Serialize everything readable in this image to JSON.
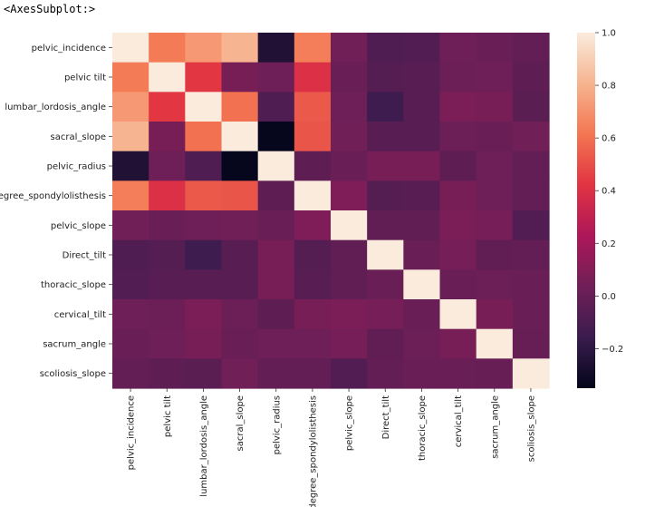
{
  "output_repr": "<AxesSubplot:>",
  "chart_data": {
    "type": "heatmap",
    "labels": [
      "pelvic_incidence",
      "pelvic tilt",
      "lumbar_lordosis_angle",
      "sacral_slope",
      "pelvic_radius",
      "degree_spondylolisthesis",
      "pelvic_slope",
      "Direct_tilt",
      "thoracic_slope",
      "cervical_tilt",
      "sacrum_angle",
      "scoliosis_slope"
    ],
    "values": [
      [
        1.0,
        0.63,
        0.72,
        0.81,
        -0.25,
        0.64,
        0.04,
        -0.08,
        -0.07,
        0.03,
        0.01,
        -0.01
      ],
      [
        0.63,
        1.0,
        0.43,
        0.06,
        0.03,
        0.4,
        0.01,
        -0.06,
        -0.05,
        0.02,
        0.03,
        -0.03
      ],
      [
        0.72,
        0.43,
        1.0,
        0.6,
        -0.08,
        0.53,
        0.03,
        -0.14,
        -0.05,
        0.07,
        0.06,
        -0.04
      ],
      [
        0.81,
        0.06,
        0.6,
        1.0,
        -0.34,
        0.52,
        0.04,
        -0.05,
        -0.05,
        0.02,
        0.01,
        0.04
      ],
      [
        -0.25,
        0.03,
        -0.08,
        -0.34,
        1.0,
        -0.03,
        0.01,
        0.06,
        0.06,
        -0.03,
        0.03,
        -0.01
      ],
      [
        0.64,
        0.4,
        0.53,
        0.52,
        -0.03,
        1.0,
        0.08,
        -0.06,
        -0.05,
        0.06,
        0.03,
        -0.01
      ],
      [
        0.04,
        0.01,
        0.03,
        0.04,
        0.01,
        0.08,
        1.0,
        -0.02,
        -0.02,
        0.07,
        0.05,
        -0.07
      ],
      [
        -0.08,
        -0.06,
        -0.14,
        -0.05,
        0.06,
        -0.06,
        -0.02,
        1.0,
        0.01,
        0.05,
        -0.02,
        -0.01
      ],
      [
        -0.07,
        -0.05,
        -0.05,
        -0.05,
        0.06,
        -0.05,
        -0.02,
        0.01,
        1.0,
        0.01,
        0.02,
        0.01
      ],
      [
        0.03,
        0.02,
        0.07,
        0.02,
        -0.03,
        0.06,
        0.07,
        0.05,
        0.01,
        1.0,
        0.06,
        0.01
      ],
      [
        0.01,
        0.03,
        0.06,
        0.01,
        0.03,
        0.03,
        0.05,
        -0.02,
        0.02,
        0.06,
        1.0,
        0.0
      ],
      [
        -0.01,
        -0.03,
        -0.04,
        0.04,
        -0.01,
        -0.01,
        -0.07,
        -0.01,
        0.01,
        0.01,
        0.0,
        1.0
      ]
    ],
    "vmin": -0.35,
    "vmax": 1.0,
    "colorbar_ticks": [
      -0.2,
      0.0,
      0.2,
      0.4,
      0.6,
      0.8,
      1.0
    ],
    "colorbar_tick_labels": [
      "−0.2",
      "0.0",
      "0.2",
      "0.4",
      "0.6",
      "0.8",
      "1.0"
    ],
    "colormap": "rocket",
    "colormap_stops": [
      "#03051a",
      "#3a1c4e",
      "#701f57",
      "#ad1759",
      "#e13342",
      "#f37651",
      "#f6b48f",
      "#faebdd"
    ],
    "title": "",
    "xlabel": "",
    "ylabel": "",
    "grid": false,
    "colorbar_position": "right"
  }
}
